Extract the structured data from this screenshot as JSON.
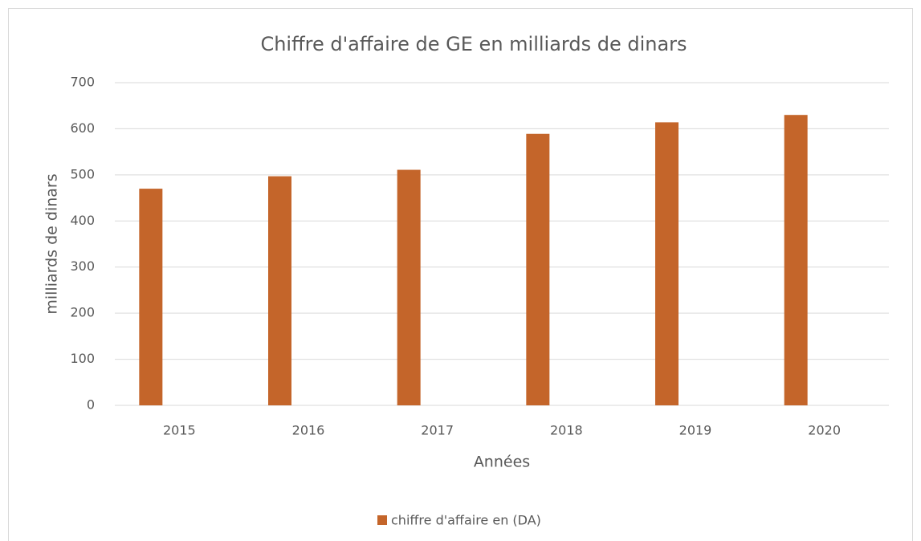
{
  "chart_data": {
    "type": "bar",
    "title": "Chiffre d'affaire  de GE en milliards de dinars",
    "x_label": "Années",
    "y_label": "milliards de dinars",
    "categories": [
      "2015",
      "2016",
      "2017",
      "2018",
      "2019",
      "2020"
    ],
    "series": [
      {
        "name": "chiffre d'affaire en (DA)",
        "color": "#c4652a",
        "values": [
          470,
          497,
          511,
          589,
          614,
          630
        ]
      }
    ],
    "ylim": [
      0,
      700
    ],
    "yticks": [
      0,
      100,
      200,
      300,
      400,
      500,
      600,
      700
    ],
    "grid": true,
    "legend": "bottom"
  }
}
